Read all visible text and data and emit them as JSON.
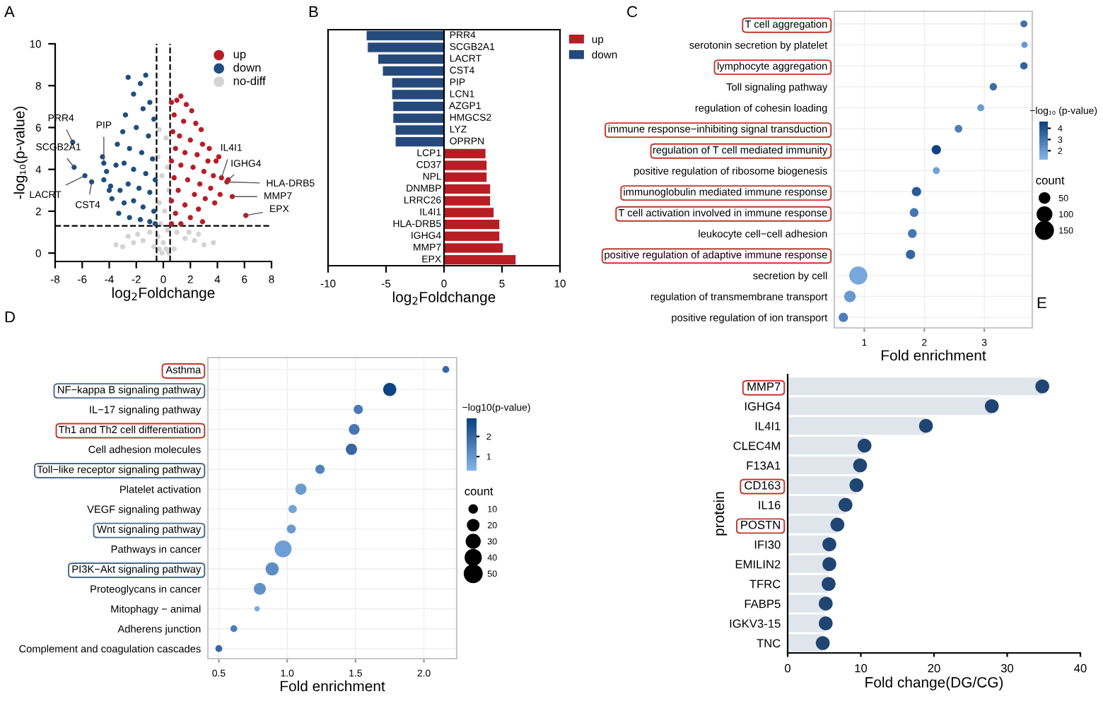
{
  "chart_data": [
    {
      "type": "scatter",
      "title": "A",
      "xlabel": "log$_{2}$Foldchange",
      "ylabel": "-log₁₀(p-value)",
      "xlim": [
        -8,
        8
      ],
      "xticks": [
        -8,
        -6,
        -4,
        -2,
        0,
        2,
        4,
        6,
        8
      ],
      "ylim": [
        -0.4,
        10
      ],
      "yticks": [
        0,
        2,
        4,
        6,
        8,
        10
      ],
      "legend": "top right",
      "marker": "circle",
      "grid": false,
      "series": [
        {
          "name": "up",
          "color": "#b81c25",
          "x": [
            0.6,
            1.0,
            1.3,
            1.7,
            2.1,
            0.8,
            1.5,
            2.4,
            2.8,
            0.7,
            1.2,
            2.0,
            2.9,
            3.4,
            0.9,
            1.6,
            2.5,
            3.3,
            3.9,
            0.6,
            1.3,
            2.2,
            3.0,
            3.7,
            0.8,
            1.8,
            2.7,
            3.5,
            1.1,
            2.3,
            3.1,
            0.6,
            1.6,
            2.6,
            3.8,
            0.9,
            2.0,
            2.9,
            1.3,
            0.6,
            4.1,
            4.3,
            4.8,
            4.7,
            5.1,
            6.1,
            4.2
          ],
          "values": [
            7.2,
            7.3,
            7.5,
            7.1,
            6.8,
            6.6,
            6.3,
            6.2,
            5.9,
            5.8,
            5.6,
            5.4,
            5.2,
            5.0,
            5.0,
            4.8,
            4.7,
            4.4,
            4.4,
            4.4,
            4.2,
            4.1,
            3.9,
            3.7,
            3.6,
            3.5,
            3.3,
            3.1,
            3.0,
            2.8,
            2.6,
            2.5,
            2.3,
            2.1,
            2.4,
            1.9,
            1.7,
            1.5,
            1.4,
            1.4,
            4.6,
            3.6,
            3.5,
            3.4,
            2.7,
            1.8,
            2.8
          ]
        },
        {
          "name": "down",
          "color": "#1f4e80",
          "x": [
            -2.6,
            -1.3,
            -1.7,
            -2.2,
            -1.0,
            -2.8,
            -1.5,
            -0.7,
            -3.0,
            -2.0,
            -1.1,
            -3.4,
            -2.5,
            -1.6,
            -0.8,
            -3.5,
            -2.9,
            -2.2,
            -1.3,
            -0.6,
            -3.9,
            -3.2,
            -2.6,
            -1.8,
            -1.0,
            -3.8,
            -2.9,
            -2.2,
            -1.5,
            -0.7,
            -3.3,
            -2.5,
            -1.7,
            -1.0,
            -0.6,
            -4.5,
            -4.2,
            -4.4,
            -4.0,
            -6.7,
            -6.6,
            -5.8,
            -5.3,
            -4.4
          ],
          "values": [
            8.4,
            8.5,
            8.1,
            7.6,
            7.2,
            6.6,
            6.9,
            6.4,
            5.8,
            6.0,
            5.6,
            5.2,
            5.0,
            4.8,
            4.5,
            4.2,
            4.3,
            4.0,
            3.8,
            3.5,
            3.2,
            3.0,
            3.3,
            3.1,
            2.9,
            2.6,
            2.4,
            2.5,
            2.2,
            2.0,
            1.9,
            1.7,
            1.6,
            1.5,
            1.4,
            4.6,
            3.9,
            3.5,
            3.0,
            5.3,
            4.1,
            3.7,
            3.4,
            4.3
          ]
        },
        {
          "name": "no-diff",
          "color": "#d3d3d3",
          "x": [
            -0.3,
            0.2,
            -0.4,
            0.3,
            -0.1,
            0.4,
            -0.3,
            0.1,
            -0.2,
            0.3,
            -0.4,
            0.0,
            0.2,
            -0.1,
            0.4,
            -0.3,
            -1.0,
            -1.5,
            -2.2,
            -3.0,
            -3.5,
            1.0,
            1.6,
            2.3,
            3.0,
            3.7,
            -0.7,
            0.8,
            -1.9,
            1.9,
            2.6,
            -2.6
          ],
          "values": [
            5.9,
            5.5,
            4.6,
            4.1,
            3.7,
            3.0,
            2.4,
            2.0,
            1.4,
            1.1,
            0.8,
            0.5,
            0.2,
            0.0,
            0.0,
            0.2,
            1.0,
            0.6,
            0.5,
            0.3,
            0.4,
            1.0,
            0.7,
            0.6,
            0.4,
            0.5,
            0.3,
            0.2,
            0.9,
            1.0,
            0.9,
            0.8
          ]
        }
      ],
      "ref_lines": [
        {
          "axis": "x",
          "value": -0.5,
          "line_style": "dashed",
          "color": "#000000"
        },
        {
          "axis": "x",
          "value": 0.5,
          "line_style": "dashed",
          "color": "#000000"
        },
        {
          "axis": "y",
          "value": 1.3,
          "line_style": "dashed",
          "color": "#000000"
        }
      ],
      "annotations": [
        {
          "text": "PRR4",
          "x": -6.7,
          "y": 5.3
        },
        {
          "text": "SCGB2A1",
          "x": -6.6,
          "y": 4.1
        },
        {
          "text": "LACRT",
          "x": -5.8,
          "y": 3.7
        },
        {
          "text": "CST4",
          "x": -5.3,
          "y": 3.4
        },
        {
          "text": "PIP",
          "x": -4.4,
          "y": 4.3
        },
        {
          "text": "IL4I1",
          "x": 4.3,
          "y": 3.6
        },
        {
          "text": "IGHG4",
          "x": 4.8,
          "y": 3.5
        },
        {
          "text": "HLA-DRB5",
          "x": 4.7,
          "y": 3.4
        },
        {
          "text": "MMP7",
          "x": 5.1,
          "y": 2.7
        },
        {
          "text": "EPX",
          "x": 6.1,
          "y": 1.8
        }
      ]
    },
    {
      "type": "bar",
      "title": "B",
      "orientation": "horizontal",
      "xlabel": "log$_{2}$Foldchange",
      "xlim": [
        -10,
        10
      ],
      "xticks": [
        -10,
        -5,
        0,
        5,
        10
      ],
      "legend": "top right",
      "tick_labels": "x",
      "categories": [
        "PRR4",
        "SCGB2A1",
        "LACRT",
        "CST4",
        "PIP",
        "LCN1",
        "AZGP1",
        "HMGCS2",
        "LYZ",
        "OPRPN",
        "LCP1",
        "CD37",
        "NPL",
        "DNMBP",
        "LRRC26",
        "IL4I1",
        "HLA-DRB5",
        "IGHG4",
        "MMP7",
        "EPX"
      ],
      "series": [
        {
          "name": "up",
          "color": "#b81c25",
          "values": [
            null,
            null,
            null,
            null,
            null,
            null,
            null,
            null,
            null,
            null,
            3.6,
            3.7,
            3.7,
            4.0,
            4.0,
            4.3,
            4.8,
            4.8,
            5.1,
            6.2
          ]
        },
        {
          "name": "down",
          "color": "#24497a",
          "values": [
            -6.7,
            -6.6,
            -5.7,
            -5.3,
            -4.5,
            -4.5,
            -4.4,
            -4.4,
            -4.2,
            -4.2,
            null,
            null,
            null,
            null,
            null,
            null,
            null,
            null,
            null,
            null
          ]
        }
      ]
    },
    {
      "type": "bubble",
      "title": "C",
      "orientation": "horizontal",
      "xlabel": "Fold enrichment",
      "xlim": [
        0.5,
        3.8
      ],
      "xticks": [
        1,
        2,
        3
      ],
      "grid": true,
      "clabel": "−log₁₀ (p-value)",
      "clim": [
        1.2,
        4.6
      ],
      "cticks": [
        2,
        3,
        4
      ],
      "legend_title": "count",
      "size_legend": [
        50,
        100,
        150
      ],
      "categories": [
        "T cell aggregation",
        "serotonin secretion by platelet",
        "lymphocyte aggregation",
        "Toll signaling pathway",
        "regulation of cohesin loading",
        "immune response−inhibiting signal transduction",
        "regulation of T cell mediated immunity",
        "positive regulation of ribosome biogenesis",
        "immunoglobulin mediated immune response",
        "T cell activation involved in immune response",
        "leukocyte cell−cell adhesion",
        "positive regulation of adaptive immune response",
        "secretion by cell",
        "regulation of transmembrane transport",
        "positive regulation of ion transport"
      ],
      "values": [
        3.66,
        3.67,
        3.66,
        3.15,
        2.94,
        2.57,
        2.2,
        2.2,
        1.87,
        1.83,
        1.8,
        1.77,
        0.9,
        0.76,
        0.65
      ],
      "sizes": [
        25,
        20,
        28,
        28,
        25,
        30,
        45,
        25,
        45,
        40,
        40,
        45,
        170,
        70,
        45
      ],
      "cvalues": [
        3.2,
        2.0,
        3.6,
        3.3,
        2.0,
        2.8,
        4.5,
        1.8,
        3.8,
        3.0,
        3.0,
        3.5,
        1.6,
        2.0,
        2.8
      ]
    },
    {
      "type": "bubble",
      "title": "D",
      "orientation": "horizontal",
      "xlabel": "Fold enrichment",
      "xlim": [
        0.42,
        2.24
      ],
      "xticks": [
        0.5,
        {
          "value": 1,
          "label": "1.0"
        },
        1.5,
        {
          "value": 2,
          "label": "2.0"
        }
      ],
      "grid": true,
      "clabel": "−log10(p-value)",
      "clim": [
        0.3,
        2.9
      ],
      "cticks": [
        1,
        2
      ],
      "legend_title": "count",
      "size_legend": [
        10,
        20,
        30,
        40,
        50
      ],
      "categories": [
        "Asthma",
        "NF−kappa B signaling pathway",
        "IL−17 signaling pathway",
        "Th1 and Th2 cell differentiation",
        "Cell adhesion molecules",
        "Toll−like receptor signaling pathway",
        "Platelet activation",
        "VEGF signaling pathway",
        "Wnt signaling pathway",
        "Pathways in cancer",
        "PI3K−Akt signaling pathway",
        "Proteoglycans in cancer",
        "Mitophagy − animal",
        "Adherens junction",
        "Complement and coagulation cascades"
      ],
      "values": [
        2.16,
        1.75,
        1.52,
        1.49,
        1.47,
        1.24,
        1.1,
        1.04,
        1.03,
        0.97,
        0.89,
        0.8,
        0.78,
        0.61,
        0.5
      ],
      "sizes": [
        8,
        30,
        15,
        20,
        22,
        15,
        22,
        12,
        14,
        50,
        30,
        25,
        5,
        8,
        8
      ],
      "cvalues": [
        2.0,
        2.8,
        1.6,
        1.7,
        2.0,
        1.4,
        0.9,
        0.7,
        0.9,
        0.8,
        1.2,
        1.1,
        0.5,
        1.5,
        2.0
      ]
    },
    {
      "type": "lollipop",
      "title": "E",
      "orientation": "horizontal",
      "xlabel": "Fold change(DG/CG)",
      "ylabel": "protein",
      "xlim": [
        0,
        40
      ],
      "xticks": [
        0,
        10,
        20,
        30,
        40
      ],
      "color": "#1f4572",
      "categories": [
        "MMP7",
        "IGHG4",
        "IL4I1",
        "CLEC4M",
        "F13A1",
        "CD163",
        "IL16",
        "POSTN",
        "IFI30",
        "EMILIN2",
        "TFRC",
        "FABP5",
        "IGKV3-15",
        "TNC"
      ],
      "values": [
        34.8,
        27.9,
        18.9,
        10.5,
        9.9,
        9.4,
        7.9,
        6.8,
        5.7,
        5.7,
        5.6,
        5.2,
        5.2,
        4.8
      ]
    }
  ]
}
